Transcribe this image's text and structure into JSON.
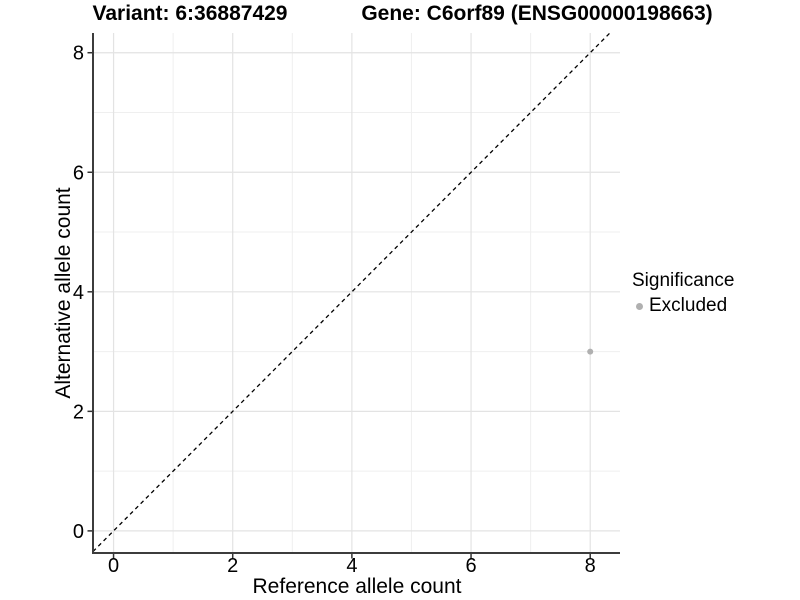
{
  "chart_data": {
    "type": "scatter",
    "title_left": "Variant: 6:36887429",
    "title_right": "Gene: C6orf89 (ENSG00000198663)",
    "xlabel": "Reference allele count",
    "ylabel": "Alternative allele count",
    "xlim": [
      -0.345,
      8.5
    ],
    "ylim": [
      -0.37,
      8.33
    ],
    "x_ticks": [
      0,
      2,
      4,
      6,
      8
    ],
    "y_ticks": [
      0,
      2,
      4,
      6,
      8
    ],
    "x_minor_gridlines": [
      1,
      3,
      5,
      7
    ],
    "y_minor_gridlines": [
      1,
      3,
      5,
      7
    ],
    "grid": "on",
    "identity_line": {
      "equation": "y = x",
      "style": "dashed",
      "color": "#000000"
    },
    "points": [
      {
        "x": 8,
        "y": 3,
        "series": "Excluded",
        "color": "#b0b0b0"
      }
    ],
    "legend": {
      "position": "right",
      "title": "Significance",
      "items": [
        {
          "label": "Excluded",
          "color": "#b0b0b0"
        }
      ]
    },
    "colors": {
      "grid_major": "#e3e3e3",
      "grid_minor": "#efefef",
      "axis_line": "#3c3c3c",
      "tick_mark": "#333333",
      "tick_label": "#000000",
      "point": "#b0b0b0"
    }
  }
}
